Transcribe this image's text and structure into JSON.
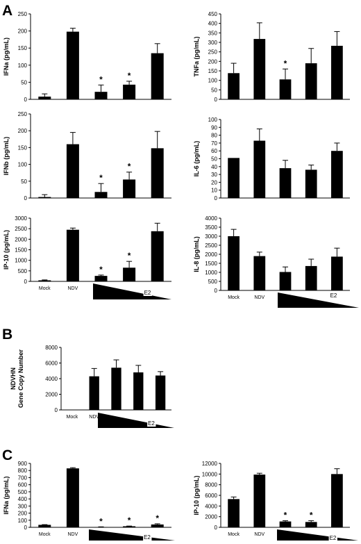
{
  "panel_letters": [
    "A",
    "B",
    "C"
  ],
  "colors": {
    "bar": "#000000",
    "axis": "#000000",
    "background": "#ffffff"
  },
  "dose_label": "E2",
  "chart_data": [
    {
      "id": "A-IFNa",
      "type": "bar",
      "ylabel": "IFNa (pg/mL)",
      "categories": [
        "",
        "",
        "",
        "",
        ""
      ],
      "values": [
        8,
        198,
        22,
        43,
        135
      ],
      "errors": [
        8,
        10,
        20,
        10,
        28
      ],
      "significant": [
        false,
        false,
        true,
        true,
        false
      ],
      "ylim": [
        0,
        250
      ],
      "yticks": [
        0,
        50,
        100,
        150,
        200,
        250
      ]
    },
    {
      "id": "A-TNFa",
      "type": "bar",
      "ylabel": "TNFa (pg/mL)",
      "categories": [
        "",
        "",
        "",
        "",
        ""
      ],
      "values": [
        138,
        318,
        105,
        190,
        282
      ],
      "errors": [
        52,
        85,
        55,
        78,
        75
      ],
      "significant": [
        false,
        false,
        true,
        false,
        false
      ],
      "ylim": [
        0,
        450
      ],
      "yticks": [
        0,
        50,
        100,
        150,
        200,
        250,
        300,
        350,
        400,
        450
      ]
    },
    {
      "id": "A-IFNb",
      "type": "bar",
      "ylabel": "IFNb (pg/mL)",
      "categories": [
        "",
        "",
        "",
        "",
        ""
      ],
      "values": [
        3,
        160,
        18,
        55,
        148
      ],
      "errors": [
        7,
        35,
        25,
        22,
        50
      ],
      "significant": [
        false,
        false,
        true,
        true,
        false
      ],
      "ylim": [
        0,
        250
      ],
      "yticks": [
        0,
        50,
        100,
        150,
        200,
        250
      ]
    },
    {
      "id": "A-IL6",
      "type": "bar",
      "ylabel": "IL-6 (pg/mL)",
      "categories": [
        "",
        "",
        "",
        "",
        ""
      ],
      "values": [
        51,
        73,
        38,
        36,
        60
      ],
      "errors": [
        0,
        15,
        10,
        6,
        10
      ],
      "significant": [
        false,
        false,
        false,
        false,
        false
      ],
      "ylim": [
        0,
        100
      ],
      "yticks": [
        0,
        10,
        20,
        30,
        40,
        50,
        60,
        70,
        80,
        90,
        100
      ]
    },
    {
      "id": "A-IP10",
      "type": "bar",
      "ylabel": "IP-10 (pg/mL)",
      "categories": [
        "Mock",
        "NDV",
        "",
        "",
        ""
      ],
      "values": [
        50,
        2450,
        260,
        650,
        2380
      ],
      "errors": [
        20,
        80,
        40,
        300,
        380
      ],
      "significant": [
        false,
        false,
        true,
        true,
        false
      ],
      "ylim": [
        0,
        3000
      ],
      "yticks": [
        0,
        500,
        1000,
        1500,
        2000,
        2500,
        3000
      ]
    },
    {
      "id": "A-IL8",
      "type": "bar",
      "ylabel": "IL-8 (pg/mL)",
      "categories": [
        "Mock",
        "NDV",
        "",
        "",
        ""
      ],
      "values": [
        3000,
        1900,
        1020,
        1350,
        1870
      ],
      "errors": [
        380,
        220,
        280,
        380,
        470
      ],
      "significant": [
        false,
        false,
        false,
        false,
        false
      ],
      "ylim": [
        0,
        4000
      ],
      "yticks": [
        0,
        500,
        1000,
        1500,
        2000,
        2500,
        3000,
        3500,
        4000
      ]
    },
    {
      "id": "B-NDVHN",
      "type": "bar",
      "ylabel": "NDVHN Gene Copy Number",
      "ylabel_lines": [
        "NDVHN",
        "Gene Copy Number"
      ],
      "categories": [
        "Mock",
        "NDV",
        "",
        "",
        ""
      ],
      "values": [
        0,
        4300,
        5400,
        4800,
        4400
      ],
      "errors": [
        0,
        1000,
        1000,
        900,
        500
      ],
      "significant": [
        false,
        false,
        false,
        false,
        false
      ],
      "ylim": [
        0,
        8000
      ],
      "yticks": [
        0,
        2000,
        4000,
        6000,
        8000
      ]
    },
    {
      "id": "C-IFNa",
      "type": "bar",
      "ylabel": "IFNa (pg/mL)",
      "categories": [
        "Mock",
        "NDV",
        "",
        "",
        ""
      ],
      "values": [
        35,
        830,
        5,
        15,
        40
      ],
      "errors": [
        3,
        10,
        2,
        3,
        10
      ],
      "significant": [
        false,
        false,
        true,
        true,
        true
      ],
      "ylim": [
        0,
        900
      ],
      "yticks": [
        0,
        100,
        200,
        300,
        400,
        500,
        600,
        700,
        800,
        900
      ]
    },
    {
      "id": "C-IP10",
      "type": "bar",
      "ylabel": "IP-10 (pg/mL)",
      "categories": [
        "Mock",
        "NDV",
        "",
        "",
        ""
      ],
      "values": [
        5300,
        9900,
        1100,
        1000,
        10000
      ],
      "errors": [
        400,
        250,
        150,
        250,
        1000
      ],
      "significant": [
        false,
        false,
        true,
        true,
        false
      ],
      "ylim": [
        0,
        12000
      ],
      "yticks": [
        0,
        2000,
        4000,
        6000,
        8000,
        10000,
        12000
      ]
    }
  ]
}
